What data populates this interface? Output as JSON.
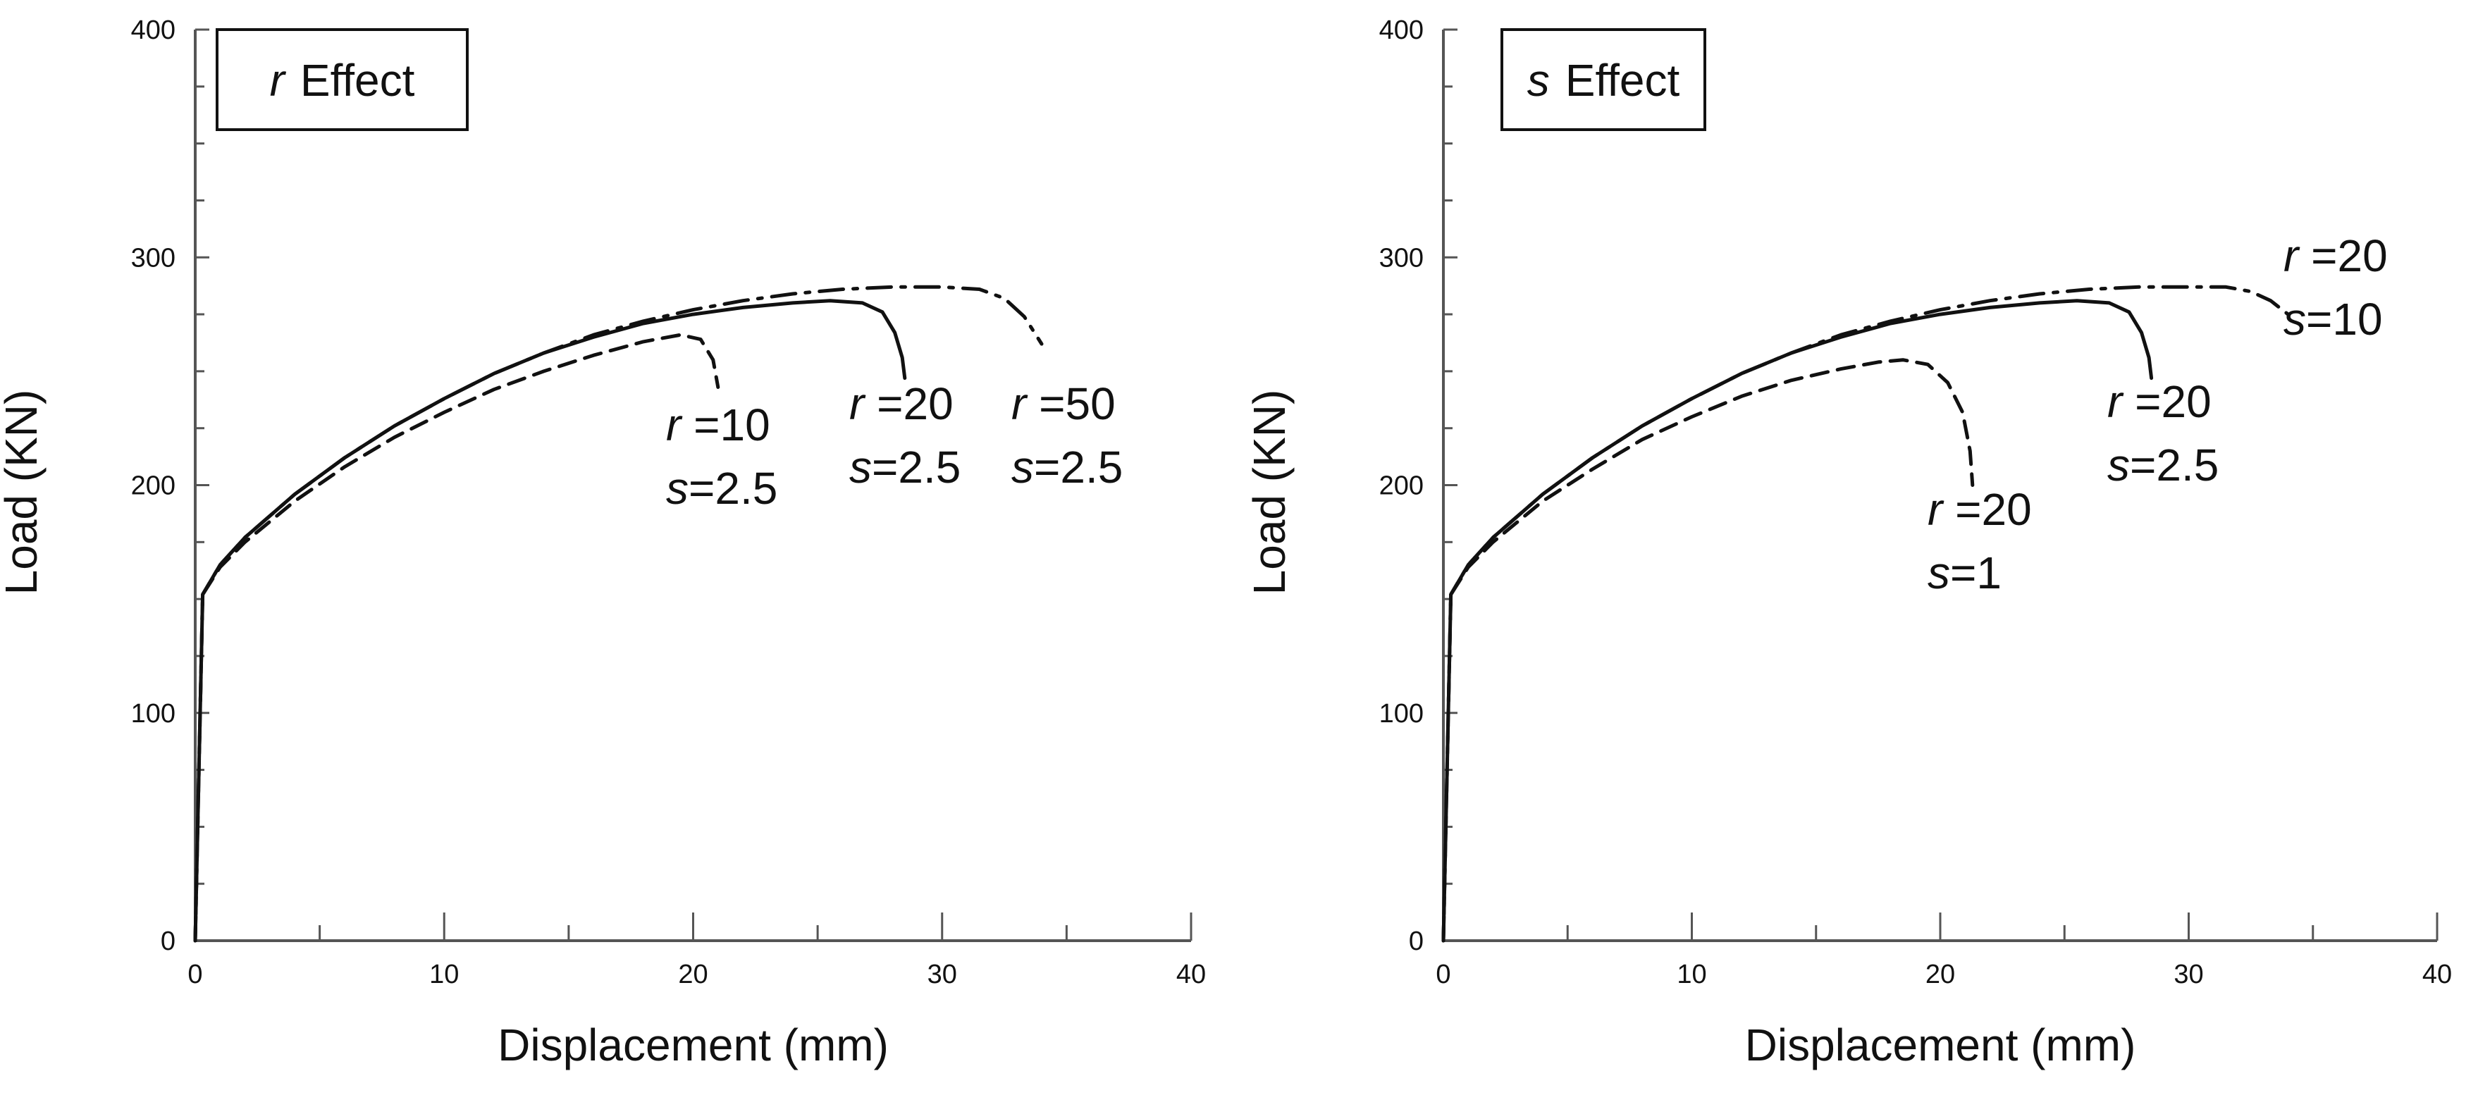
{
  "chart_data": [
    {
      "type": "line",
      "title": "r Effect",
      "title_parts": [
        "r",
        "Effect"
      ],
      "xlabel": "Displacement (mm)",
      "ylabel": "Load (KN)",
      "xlim": [
        0,
        40
      ],
      "ylim": [
        0,
        400
      ],
      "xticks": [
        0,
        10,
        20,
        30,
        40
      ],
      "yticks": [
        0,
        100,
        200,
        300,
        400
      ],
      "xtick_labels": [
        "0",
        "10",
        "20",
        "30",
        "40"
      ],
      "ytick_labels": [
        "0",
        "100",
        "200",
        "300",
        "400"
      ],
      "series": [
        {
          "name": "r=10, s=2.5",
          "style": "dashed",
          "x": [
            0,
            0.3,
            1,
            2,
            4,
            6,
            8,
            10,
            12,
            14,
            16,
            18,
            19.5,
            20.3,
            20.8,
            21
          ],
          "y": [
            0,
            152,
            164,
            175,
            193,
            208,
            221,
            232,
            242,
            250,
            257,
            263,
            266,
            264,
            255,
            243
          ],
          "label_lines": [
            [
              "r",
              " =10"
            ],
            [
              "s",
              "=2.5"
            ]
          ]
        },
        {
          "name": "r=50, s=2.5",
          "style": "dash-dot",
          "x": [
            0,
            0.3,
            1,
            2,
            4,
            6,
            8,
            10,
            12,
            14,
            16,
            18,
            20,
            22,
            24,
            26,
            28,
            30,
            31.5,
            32.5,
            33.3,
            34
          ],
          "y": [
            0,
            152,
            165,
            177,
            196,
            212,
            226,
            238,
            249,
            258,
            266,
            272,
            277,
            281,
            284,
            286,
            287,
            287,
            286,
            282,
            274,
            262
          ],
          "label_lines": [
            [
              "r",
              " =50"
            ],
            [
              "s",
              "=2.5"
            ]
          ]
        },
        {
          "name": "r=20, s=2.5",
          "style": "solid",
          "x": [
            0,
            0.3,
            1,
            2,
            4,
            6,
            8,
            10,
            12,
            14,
            16,
            18,
            20,
            22,
            24,
            25.5,
            26.8,
            27.6,
            28.1,
            28.4,
            28.5
          ],
          "y": [
            0,
            152,
            165,
            177,
            196,
            212,
            226,
            238,
            249,
            258,
            265,
            271,
            275,
            278,
            280,
            281,
            280,
            276,
            267,
            256,
            247
          ],
          "label_lines": [
            [
              "r",
              " =20"
            ],
            [
              "s",
              "=2.5"
            ]
          ]
        }
      ]
    },
    {
      "type": "line",
      "title": "s Effect",
      "title_parts": [
        "s",
        "Effect"
      ],
      "xlabel": "Displacement (mm)",
      "ylabel": "Load (KN)",
      "xlim": [
        0,
        40
      ],
      "ylim": [
        0,
        400
      ],
      "xticks": [
        0,
        10,
        20,
        30,
        40
      ],
      "yticks": [
        0,
        100,
        200,
        300,
        400
      ],
      "xtick_labels": [
        "0",
        "10",
        "20",
        "30",
        "40"
      ],
      "ytick_labels": [
        "0",
        "100",
        "200",
        "300",
        "400"
      ],
      "series": [
        {
          "name": "r=20, s=1",
          "style": "dashed",
          "x": [
            0,
            0.3,
            1,
            2,
            4,
            6,
            8,
            10,
            12,
            14,
            16,
            17.5,
            18.5,
            19.5,
            20.3,
            20.9,
            21.2,
            21.3
          ],
          "y": [
            0,
            152,
            164,
            175,
            193,
            207,
            220,
            230,
            239,
            246,
            251,
            254,
            255,
            253,
            245,
            232,
            215,
            200
          ],
          "label_lines": [
            [
              "r",
              " =20"
            ],
            [
              "s",
              "=1"
            ]
          ]
        },
        {
          "name": "r=20, s=10",
          "style": "dash-dot",
          "x": [
            0,
            0.3,
            1,
            2,
            4,
            6,
            8,
            10,
            12,
            14,
            16,
            18,
            20,
            22,
            24,
            26,
            28,
            30,
            31.5,
            32.5,
            33.3,
            34
          ],
          "y": [
            0,
            152,
            165,
            177,
            196,
            212,
            226,
            238,
            249,
            258,
            266,
            272,
            277,
            281,
            284,
            286,
            287,
            287,
            287,
            285,
            281,
            275
          ],
          "label_lines": [
            [
              "r",
              " =20"
            ],
            [
              "s",
              "=10"
            ]
          ]
        },
        {
          "name": "r=20, s=2.5",
          "style": "solid",
          "x": [
            0,
            0.3,
            1,
            2,
            4,
            6,
            8,
            10,
            12,
            14,
            16,
            18,
            20,
            22,
            24,
            25.5,
            26.8,
            27.6,
            28.1,
            28.4,
            28.5
          ],
          "y": [
            0,
            152,
            165,
            177,
            196,
            212,
            226,
            238,
            249,
            258,
            265,
            271,
            275,
            278,
            280,
            281,
            280,
            276,
            267,
            256,
            247
          ],
          "label_lines": [
            [
              "r",
              " =20"
            ],
            [
              "s",
              "=2.5"
            ]
          ]
        }
      ]
    }
  ]
}
